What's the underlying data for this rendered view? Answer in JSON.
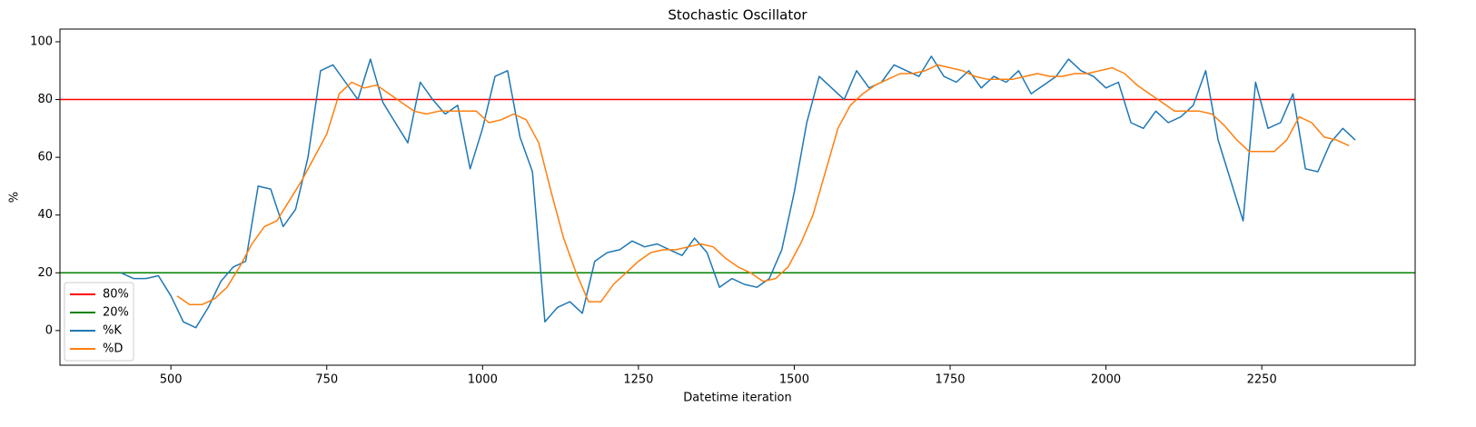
{
  "chart_data": {
    "type": "line",
    "title": "Stochastic Oscillator",
    "x_label": "Datetime iteration",
    "y_label": "%",
    "xlim": [
      322,
      2496
    ],
    "ylim": [
      -12,
      104.4
    ],
    "xticks": [
      500,
      750,
      1000,
      1250,
      1500,
      1750,
      2000,
      2250
    ],
    "yticks": [
      0,
      20,
      40,
      60,
      80,
      100
    ],
    "legend": "lower left",
    "hlines": [
      {
        "name": "80%",
        "color": "#ff0000",
        "value": 80
      },
      {
        "name": "20%",
        "color": "#008000",
        "value": 20
      }
    ],
    "series": [
      {
        "name": "%K",
        "color": "#1f77b4",
        "x": [
          420,
          440,
          460,
          480,
          500,
          520,
          540,
          560,
          580,
          600,
          620,
          640,
          660,
          680,
          700,
          720,
          740,
          760,
          780,
          800,
          820,
          840,
          860,
          880,
          900,
          920,
          940,
          960,
          980,
          1000,
          1020,
          1040,
          1060,
          1080,
          1100,
          1120,
          1140,
          1160,
          1180,
          1200,
          1220,
          1240,
          1260,
          1280,
          1300,
          1320,
          1340,
          1360,
          1380,
          1400,
          1420,
          1440,
          1460,
          1480,
          1500,
          1520,
          1540,
          1560,
          1580,
          1600,
          1620,
          1640,
          1660,
          1680,
          1700,
          1720,
          1740,
          1760,
          1780,
          1800,
          1820,
          1840,
          1860,
          1880,
          1900,
          1920,
          1940,
          1960,
          1980,
          2000,
          2020,
          2040,
          2060,
          2080,
          2100,
          2120,
          2140,
          2160,
          2180,
          2200,
          2220,
          2240,
          2260,
          2280,
          2300,
          2320,
          2340,
          2360,
          2380,
          2400
        ],
        "values": [
          20,
          18,
          18,
          19,
          12,
          3,
          1,
          8,
          17,
          22,
          24,
          50,
          49,
          36,
          42,
          60,
          90,
          92,
          86,
          80,
          94,
          79,
          72,
          65,
          86,
          80,
          75,
          78,
          56,
          70,
          88,
          90,
          67,
          55,
          3,
          8,
          10,
          6,
          24,
          27,
          28,
          31,
          29,
          30,
          28,
          26,
          32,
          27,
          15,
          18,
          16,
          15,
          18,
          28,
          48,
          72,
          88,
          84,
          80,
          90,
          84,
          86,
          92,
          90,
          88,
          95,
          88,
          86,
          90,
          84,
          88,
          86,
          90,
          82,
          85,
          88,
          94,
          90,
          88,
          84,
          86,
          72,
          70,
          76,
          72,
          74,
          78,
          90,
          66,
          52,
          38,
          86,
          70,
          72,
          82,
          56,
          55,
          65,
          70,
          66
        ]
      },
      {
        "name": "%D",
        "color": "#ff7f0e",
        "x": [
          510,
          530,
          550,
          570,
          590,
          610,
          630,
          650,
          670,
          690,
          710,
          730,
          750,
          770,
          790,
          810,
          830,
          850,
          870,
          890,
          910,
          930,
          950,
          970,
          990,
          1010,
          1030,
          1050,
          1070,
          1090,
          1110,
          1130,
          1150,
          1170,
          1190,
          1210,
          1230,
          1250,
          1270,
          1290,
          1310,
          1330,
          1350,
          1370,
          1390,
          1410,
          1430,
          1450,
          1470,
          1490,
          1510,
          1530,
          1550,
          1570,
          1590,
          1610,
          1630,
          1650,
          1670,
          1690,
          1710,
          1730,
          1750,
          1770,
          1790,
          1810,
          1830,
          1850,
          1870,
          1890,
          1910,
          1930,
          1950,
          1970,
          1990,
          2010,
          2030,
          2050,
          2070,
          2090,
          2110,
          2130,
          2150,
          2170,
          2190,
          2210,
          2230,
          2250,
          2270,
          2290,
          2310,
          2330,
          2350,
          2370,
          2390
        ],
        "values": [
          12,
          9,
          9,
          11,
          15,
          22,
          30,
          36,
          38,
          45,
          52,
          60,
          68,
          82,
          86,
          84,
          85,
          82,
          79,
          76,
          75,
          76,
          76,
          76,
          76,
          72,
          73,
          75,
          73,
          65,
          48,
          32,
          20,
          10,
          10,
          16,
          20,
          24,
          27,
          28,
          28,
          29,
          30,
          29,
          25,
          22,
          20,
          17,
          18,
          22,
          30,
          40,
          55,
          70,
          78,
          82,
          85,
          87,
          89,
          89,
          90,
          92,
          91,
          90,
          88,
          87,
          87,
          87,
          88,
          89,
          88,
          88,
          89,
          89,
          90,
          91,
          89,
          85,
          82,
          79,
          76,
          76,
          76,
          75,
          71,
          66,
          62,
          62,
          62,
          66,
          74,
          72,
          67,
          66,
          64
        ]
      }
    ]
  }
}
